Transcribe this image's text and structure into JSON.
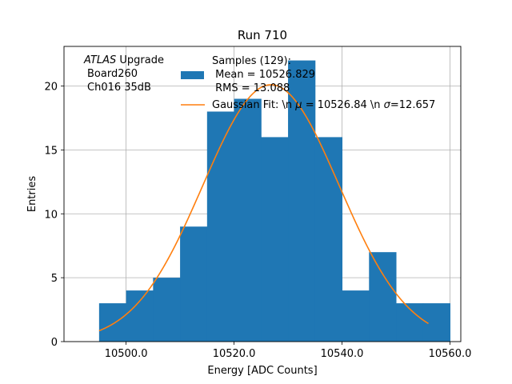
{
  "chart_data": {
    "type": "bar",
    "title": "Run 710",
    "xlabel": "Energy [ADC Counts]",
    "ylabel": "Entries",
    "xlim": [
      10488.5,
      10562
    ],
    "ylim": [
      0,
      23.1
    ],
    "grid": true,
    "xticks": [
      10500.0,
      10520.0,
      10540.0,
      10560.0
    ],
    "xtick_labels": [
      "10500.0",
      "10520.0",
      "10540.0",
      "10560.0"
    ],
    "yticks": [
      0,
      5,
      10,
      15,
      20
    ],
    "ytick_labels": [
      "0",
      "5",
      "10",
      "15",
      "20"
    ],
    "histogram": {
      "name": "Samples (129):",
      "color": "#1f77b4",
      "bin_edges": [
        10495,
        10500,
        10505,
        10510,
        10515,
        10520,
        10525,
        10530,
        10535,
        10540,
        10545,
        10550,
        10555,
        10560
      ],
      "counts": [
        3,
        4,
        5,
        9,
        18,
        19,
        16,
        22,
        16,
        4,
        7,
        3,
        3
      ]
    },
    "fit": {
      "name": "Gaussian Fit",
      "color": "#ff7f0e",
      "mu": 10526.84,
      "sigma": 12.657,
      "amplitude": 20.1,
      "x_range": [
        10495,
        10556
      ]
    },
    "annotation": {
      "line1_italic": "ATLAS",
      "line1_rest": " Upgrade",
      "line2": "Board260",
      "line3": "Ch016 35dB"
    },
    "legend": {
      "position": "top",
      "hist_lines": [
        "Samples (129):",
        " Mean = 10526.829",
        " RMS = 13.088"
      ],
      "fit_label_pre": "Gaussian Fit: \\n ",
      "fit_mu_symbol": "μ",
      "fit_mu_value": " = 10526.84 \\n ",
      "fit_sigma_symbol": "σ",
      "fit_sigma_value": "=12.657"
    }
  }
}
